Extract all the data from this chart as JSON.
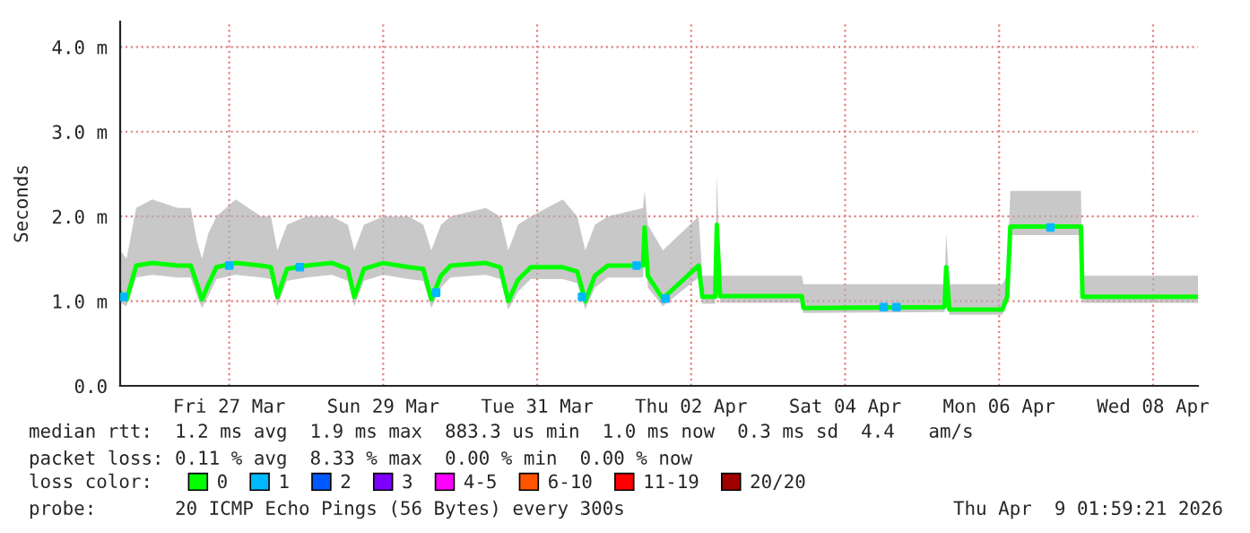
{
  "chart_data": {
    "type": "line",
    "ylabel": "Seconds",
    "legend_title": "loss color:",
    "legend": "bottom",
    "grid": true,
    "line_style": "solid",
    "xlim": [
      "2026-03-26T02:00",
      "2026-04-09T02:00"
    ],
    "xticks": [
      {
        "value": "2026-03-27T12:00",
        "label": "Fri 27 Mar"
      },
      {
        "value": "2026-03-29T12:00",
        "label": "Sun 29 Mar"
      },
      {
        "value": "2026-03-31T12:00",
        "label": "Tue 31 Mar"
      },
      {
        "value": "2026-04-02T12:00",
        "label": "Thu 02 Apr"
      },
      {
        "value": "2026-04-04T12:00",
        "label": "Sat 04 Apr"
      },
      {
        "value": "2026-04-06T12:00",
        "label": "Mon 06 Apr"
      },
      {
        "value": "2026-04-08T12:00",
        "label": "Wed 08 Apr"
      }
    ],
    "ylim": [
      0,
      4.3
    ],
    "yticks": [
      {
        "value": 0,
        "label": "0.0"
      },
      {
        "value": 1,
        "label": "1.0 m"
      },
      {
        "value": 2,
        "label": "2.0 m"
      },
      {
        "value": 3,
        "label": "3.0 m"
      },
      {
        "value": 4,
        "label": "4.0 m"
      }
    ],
    "series": [
      {
        "name": "0",
        "color": "#00ff00",
        "x": [
          "2026-03-26T02:00",
          "2026-03-26T04:00",
          "2026-03-26T07:00",
          "2026-03-26T12:00",
          "2026-03-26T20:00",
          "2026-03-27T00:00",
          "2026-03-27T02:00",
          "2026-03-27T03:30",
          "2026-03-27T05:30",
          "2026-03-27T08:00",
          "2026-03-27T14:00",
          "2026-03-27T22:00",
          "2026-03-28T01:00",
          "2026-03-28T03:00",
          "2026-03-28T06:00",
          "2026-03-28T12:00",
          "2026-03-28T20:00",
          "2026-03-29T01:00",
          "2026-03-29T03:00",
          "2026-03-29T06:00",
          "2026-03-29T12:00",
          "2026-03-29T20:00",
          "2026-03-30T00:30",
          "2026-03-30T03:00",
          "2026-03-30T06:00",
          "2026-03-30T09:00",
          "2026-03-30T20:00",
          "2026-03-31T00:30",
          "2026-03-31T03:00",
          "2026-03-31T06:00",
          "2026-03-31T10:00",
          "2026-03-31T20:00",
          "2026-04-01T00:30",
          "2026-04-01T03:00",
          "2026-04-01T06:00",
          "2026-04-01T10:00",
          "2026-04-01T21:00",
          "2026-04-01T21:30",
          "2026-04-01T22:30",
          "2026-04-02T03:10",
          "2026-04-02T14:20",
          "2026-04-02T15:30",
          "2026-04-02T19:30",
          "2026-04-02T20:00",
          "2026-04-02T21:00",
          "2026-04-03T22:30",
          "2026-04-03T23:00",
          "2026-04-05T19:00",
          "2026-04-05T19:30",
          "2026-04-05T20:30",
          "2026-04-06T13:00",
          "2026-04-06T14:30",
          "2026-04-06T15:30",
          "2026-04-07T13:30",
          "2026-04-07T14:00",
          "2026-04-09T02:00"
        ],
        "values": [
          1.1,
          1.02,
          1.42,
          1.45,
          1.42,
          1.42,
          1.2,
          1.02,
          1.2,
          1.4,
          1.45,
          1.42,
          1.4,
          1.05,
          1.38,
          1.42,
          1.45,
          1.38,
          1.05,
          1.38,
          1.45,
          1.4,
          1.38,
          1.02,
          1.3,
          1.42,
          1.45,
          1.4,
          1.0,
          1.25,
          1.4,
          1.4,
          1.35,
          1.0,
          1.3,
          1.42,
          1.42,
          1.87,
          1.3,
          1.03,
          1.42,
          1.05,
          1.05,
          1.9,
          1.06,
          1.06,
          0.92,
          0.93,
          1.4,
          0.9,
          0.9,
          1.05,
          1.88,
          1.88,
          1.05,
          1.05
        ],
        "lower": [
          0.98,
          0.94,
          1.28,
          1.31,
          1.28,
          1.28,
          1.06,
          0.92,
          1.06,
          1.26,
          1.31,
          1.28,
          1.26,
          0.94,
          1.24,
          1.28,
          1.31,
          1.24,
          0.94,
          1.24,
          1.31,
          1.26,
          1.24,
          0.92,
          1.16,
          1.28,
          1.31,
          1.26,
          0.9,
          1.11,
          1.26,
          1.26,
          1.21,
          0.9,
          1.16,
          1.28,
          1.28,
          1.6,
          1.16,
          0.94,
          1.28,
          0.97,
          0.97,
          1.6,
          0.98,
          0.98,
          0.86,
          0.87,
          1.2,
          0.84,
          0.84,
          0.98,
          1.78,
          1.78,
          0.98,
          0.98
        ],
        "upper": [
          1.6,
          1.5,
          2.1,
          2.2,
          2.1,
          2.1,
          1.7,
          1.5,
          1.8,
          2.0,
          2.2,
          2.0,
          2.0,
          1.6,
          1.9,
          2.0,
          2.0,
          1.9,
          1.6,
          1.9,
          2.0,
          2.0,
          1.9,
          1.6,
          1.9,
          2.0,
          2.1,
          2.0,
          1.6,
          1.9,
          2.0,
          2.2,
          2.0,
          1.6,
          1.9,
          2.0,
          2.1,
          2.3,
          1.9,
          1.6,
          2.0,
          1.3,
          1.3,
          2.5,
          1.3,
          1.3,
          1.2,
          1.2,
          1.8,
          1.2,
          1.2,
          1.3,
          2.3,
          2.3,
          1.3,
          1.3
        ]
      },
      {
        "name": "1",
        "color": "#00b8ff",
        "type": "scatter",
        "marker": "square",
        "x": [
          "2026-03-26T03:00",
          "2026-03-27T12:00",
          "2026-03-28T10:00",
          "2026-03-30T04:30",
          "2026-04-01T02:00",
          "2026-04-01T19:00",
          "2026-04-02T04:00",
          "2026-04-05T00:00",
          "2026-04-05T04:00",
          "2026-04-07T04:00"
        ],
        "values": [
          1.05,
          1.42,
          1.4,
          1.1,
          1.05,
          1.42,
          1.03,
          0.93,
          0.93,
          1.87
        ]
      },
      {
        "name": "2",
        "color": "#0059ff",
        "type": "line"
      },
      {
        "name": "3",
        "color": "#7e00ff",
        "type": "line"
      },
      {
        "name": "4-5",
        "color": "#ff00ff",
        "type": "line"
      },
      {
        "name": "6-10",
        "color": "#ff5500",
        "type": "line"
      },
      {
        "name": "11-19",
        "color": "#ff0000",
        "type": "line"
      },
      {
        "name": "20/20",
        "color": "#a10000",
        "type": "line"
      }
    ],
    "annotations": [
      "median rtt:  1.2 ms avg  1.9 ms max  883.3 us min  1.0 ms now  0.3 ms sd  4.4   am/s",
      "packet loss: 0.11 % avg  8.33 % max  0.00 % min  0.00 % now",
      "probe:       20 ICMP Echo Pings (56 Bytes) every 300s",
      "Thu Apr  9 01:59:21 2026"
    ]
  }
}
